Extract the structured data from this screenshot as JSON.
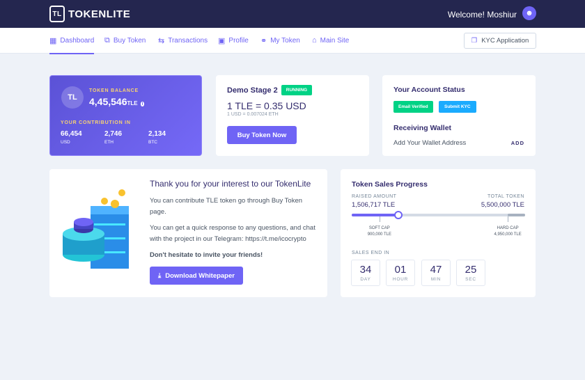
{
  "header": {
    "logo_text": "TOKENLITE",
    "welcome": "Welcome! Moshiur"
  },
  "nav": {
    "items": [
      {
        "label": "Dashboard",
        "icon": "grid-icon"
      },
      {
        "label": "Buy Token",
        "icon": "coins-icon"
      },
      {
        "label": "Transactions",
        "icon": "swap-icon"
      },
      {
        "label": "Profile",
        "icon": "user-card-icon"
      },
      {
        "label": "My Token",
        "icon": "token-icon"
      },
      {
        "label": "Main Site",
        "icon": "home-icon"
      }
    ],
    "kyc_button": "KYC Application",
    "active": "Dashboard"
  },
  "balance": {
    "label": "TOKEN BALANCE",
    "value": "4,45,546",
    "unit": "TLE",
    "contribution_label": "YOUR CONTRIBUTION IN",
    "contributions": [
      {
        "value": "66,454",
        "currency": "USD"
      },
      {
        "value": "2,746",
        "currency": "ETH"
      },
      {
        "value": "2,134",
        "currency": "BTC"
      }
    ]
  },
  "stage": {
    "title": "Demo Stage 2",
    "status": "RUNNING",
    "rate": "1 TLE = 0.35 USD",
    "sub_rate": "1 USD = 0.007024 ETH",
    "button": "Buy Token Now"
  },
  "account": {
    "title": "Your Account Status",
    "email_badge": "Email Verified",
    "kyc_badge": "Submit KYC",
    "wallet_title": "Receiving Wallet",
    "wallet_text": "Add Your Wallet Address",
    "add": "ADD"
  },
  "promo": {
    "title": "Thank you for your interest to our TokenLite",
    "p1": "You can contribute TLE token go through Buy Token page.",
    "p2": "You can get a quick response to any questions, and chat with the project in our Telegram: https://t.me/icocrypto",
    "p3": "Don't hesitate to invite your friends!",
    "button": "Download Whitepaper"
  },
  "sales": {
    "title": "Token Sales Progress",
    "raised_label": "RAISED AMOUNT",
    "raised": "1,506,717 TLE",
    "total_label": "TOTAL TOKEN",
    "total": "5,500,000 TLE",
    "progress_percent": 27,
    "soft_cap_label": "SOFT CAP",
    "soft_cap": "900,000 TLE",
    "soft_cap_percent": 16,
    "hard_cap_label": "HARD CAP",
    "hard_cap": "4,950,000 TLE",
    "hard_cap_percent": 90,
    "ends_label": "SALES END IN",
    "countdown": [
      {
        "value": "34",
        "unit": "DAY"
      },
      {
        "value": "01",
        "unit": "HOUR"
      },
      {
        "value": "47",
        "unit": "MIN"
      },
      {
        "value": "25",
        "unit": "SEC"
      }
    ]
  },
  "colors": {
    "primary": "#6f64f5",
    "header": "#24264f",
    "success": "#00d285",
    "info": "#1babfe",
    "accent_yellow": "#f9d371"
  }
}
